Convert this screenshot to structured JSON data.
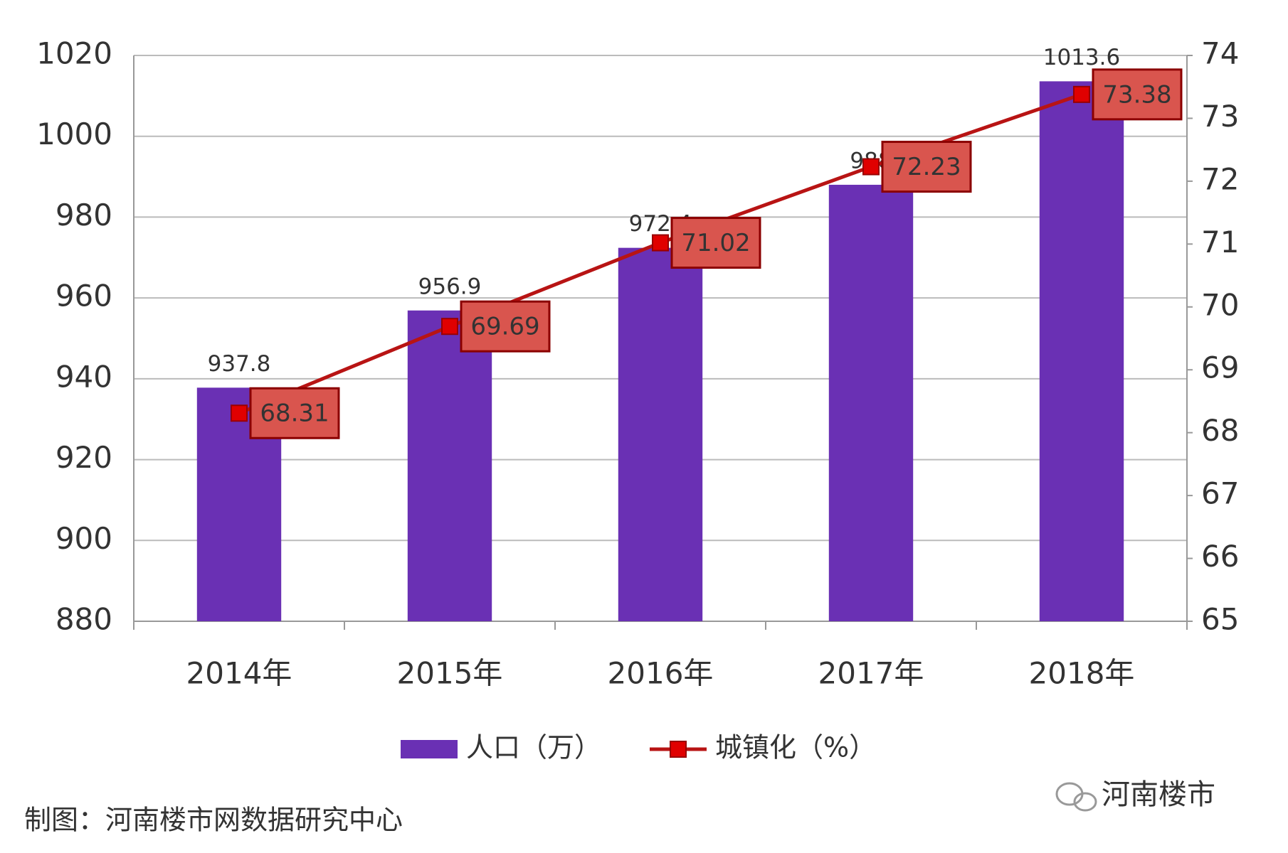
{
  "chart_data": {
    "type": "combo",
    "categories": [
      "2014年",
      "2015年",
      "2016年",
      "2017年",
      "2018年"
    ],
    "series": [
      {
        "name": "人口（万）",
        "type": "bar",
        "color": "#6a30b4",
        "values": [
          937.8,
          956.9,
          972.4,
          988,
          1013.6
        ]
      },
      {
        "name": "城镇化（%）",
        "type": "line",
        "axis": "y2",
        "color": "#b81414",
        "values": [
          68.31,
          69.69,
          71.02,
          72.23,
          73.38
        ]
      }
    ],
    "ylim": [
      880,
      1020
    ],
    "yticks": [
      880,
      900,
      920,
      940,
      960,
      980,
      1000,
      1020
    ],
    "y2lim": [
      65,
      74
    ],
    "y2ticks": [
      65,
      66,
      67,
      68,
      69,
      70,
      71,
      72,
      73,
      74
    ],
    "grid": true,
    "legend": "bottom"
  },
  "footer": {
    "credit": "制图：河南楼市网数据研究中心",
    "brand": "河南楼市"
  }
}
